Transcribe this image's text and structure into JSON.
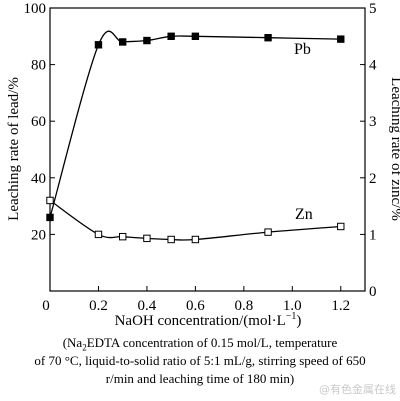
{
  "chart_data": {
    "type": "line",
    "xlabel_main": "NaOH concentration/(mol·L",
    "xlabel_sup": "−1",
    "xlabel_close": ")",
    "ylabel_left": "Leaching rate of lead/%",
    "ylabel_right": "Leaching rate of zinc/%",
    "xlim": [
      0,
      1.3
    ],
    "ylim_left": [
      0,
      100
    ],
    "ylim_right": [
      0,
      5
    ],
    "x_ticks": [
      "0",
      "0.2",
      "0.4",
      "0.6",
      "0.8",
      "1.0",
      "1.2"
    ],
    "y_left_ticks": [
      "0",
      "20",
      "40",
      "60",
      "80",
      "100"
    ],
    "y_right_ticks": [
      "0",
      "1",
      "2",
      "3",
      "4",
      "5"
    ],
    "series": [
      {
        "name": "Pb",
        "axis": "left",
        "marker": "filled-square",
        "x": [
          0,
          0.2,
          0.3,
          0.4,
          0.5,
          0.6,
          0.9,
          1.2
        ],
        "y": [
          26,
          87,
          88,
          88.5,
          90,
          90,
          89.5,
          89
        ]
      },
      {
        "name": "Zn",
        "axis": "right",
        "marker": "open-square",
        "x": [
          0,
          0.2,
          0.3,
          0.4,
          0.5,
          0.6,
          0.9,
          1.2
        ],
        "y": [
          1.6,
          1.0,
          0.96,
          0.93,
          0.91,
          0.91,
          1.04,
          1.14
        ]
      }
    ]
  },
  "caption": {
    "line1_pre": "(Na",
    "line1_sub": "2",
    "line1_post": "EDTA concentration of 0.15 mol/L, temperature",
    "line2": "of 70 °C, liquid-to-solid ratio of 5:1 mL/g, stirring speed of 650",
    "line3": "r/min and leaching time of 180 min)"
  },
  "watermark": "@有色金属在线"
}
